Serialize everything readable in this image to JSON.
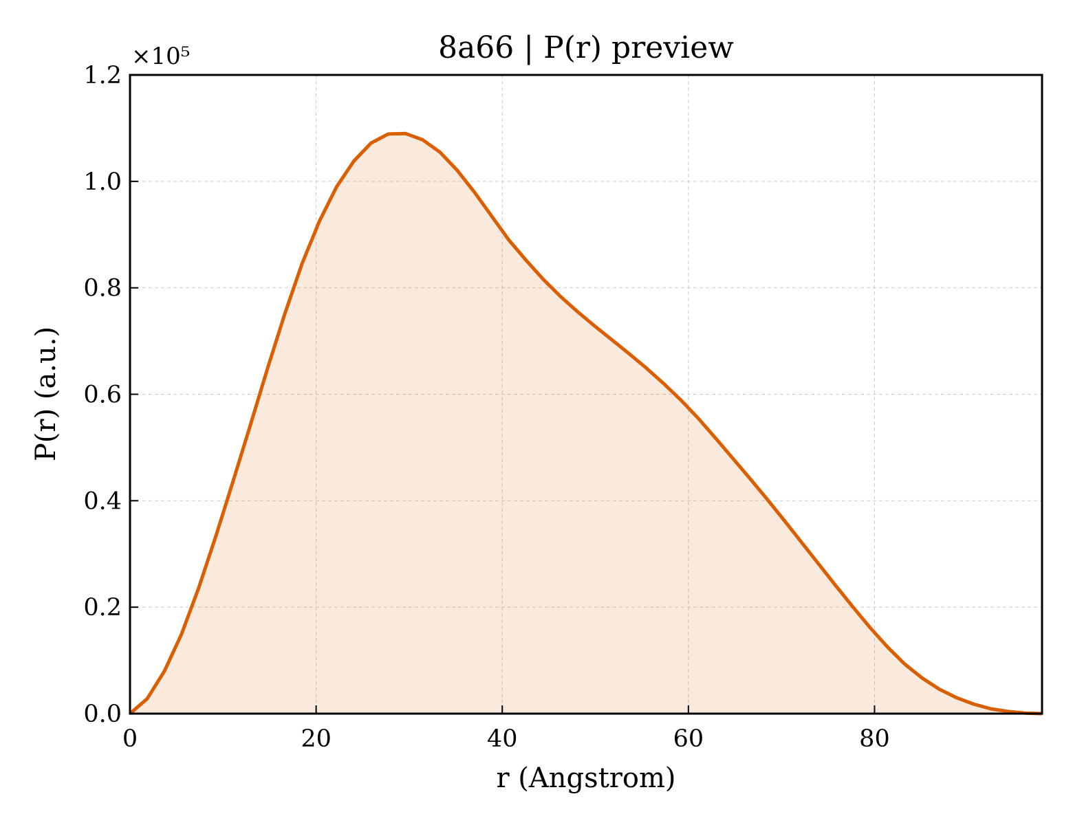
{
  "chart_data": {
    "type": "area",
    "title": "8a66 | P(r) preview",
    "xlabel": "r (Angstrom)",
    "ylabel": "P(r) (a.u.)",
    "y_offset_label": "×10⁵",
    "xlim": [
      0,
      98
    ],
    "ylim": [
      0,
      1.2
    ],
    "x_ticks": [
      0,
      20,
      40,
      60,
      80
    ],
    "x_tick_labels": [
      "0",
      "20",
      "40",
      "60",
      "80"
    ],
    "y_ticks": [
      0,
      0.2,
      0.4,
      0.6,
      0.8,
      1.0,
      1.2
    ],
    "y_tick_labels": [
      "0.0",
      "0.2",
      "0.4",
      "0.6",
      "0.8",
      "1.0",
      "1.2"
    ],
    "grid": true,
    "line_color": "#d95f02",
    "fill_color": "#d95f02",
    "fill_opacity": 0.13,
    "series": [
      {
        "x": [
          0,
          1.85,
          3.7,
          5.55,
          7.4,
          9.25,
          11.1,
          12.95,
          14.8,
          16.65,
          18.5,
          20.35,
          22.2,
          24.05,
          25.9,
          27.75,
          29.6,
          31.45,
          33.3,
          35.15,
          37.0,
          38.85,
          40.7,
          42.55,
          44.4,
          46.25,
          48.1,
          49.95,
          51.8,
          53.65,
          55.5,
          57.35,
          59.2,
          61.05,
          62.9,
          64.75,
          66.6,
          68.45,
          70.3,
          72.15,
          74.0,
          75.85,
          77.7,
          79.55,
          81.4,
          83.25,
          85.1,
          86.95,
          88.8,
          90.65,
          92.5,
          94.35,
          96.2,
          98.0
        ],
        "values": [
          0.0,
          0.028,
          0.08,
          0.15,
          0.237,
          0.335,
          0.438,
          0.543,
          0.65,
          0.752,
          0.846,
          0.925,
          0.99,
          1.038,
          1.072,
          1.089,
          1.09,
          1.078,
          1.055,
          1.021,
          0.98,
          0.935,
          0.89,
          0.852,
          0.816,
          0.784,
          0.755,
          0.728,
          0.702,
          0.676,
          0.649,
          0.62,
          0.589,
          0.555,
          0.518,
          0.48,
          0.442,
          0.403,
          0.363,
          0.322,
          0.281,
          0.24,
          0.2,
          0.161,
          0.125,
          0.093,
          0.067,
          0.046,
          0.03,
          0.018,
          0.009,
          0.004,
          0.001,
          0.0
        ]
      }
    ]
  }
}
